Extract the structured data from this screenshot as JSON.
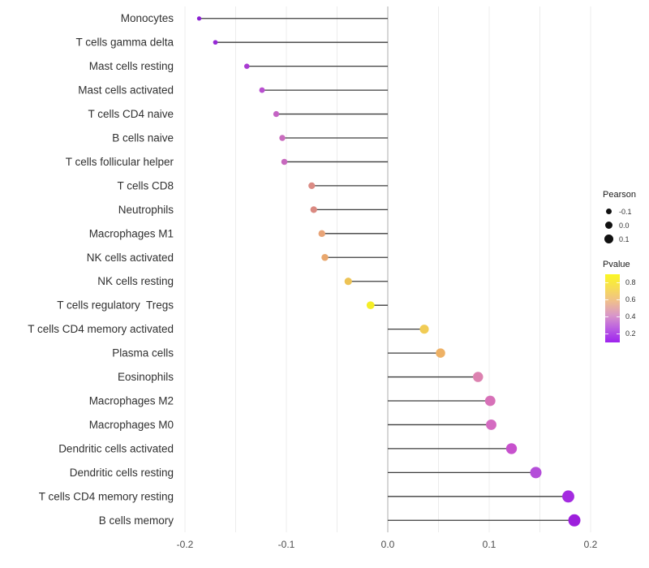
{
  "figure": {
    "background": "#ffffff"
  },
  "chart_data": {
    "type": "scatter",
    "subtype": "horizontal-lollipop",
    "title": "",
    "xlabel": "",
    "ylabel": "",
    "xlim": [
      -0.205,
      0.205
    ],
    "x_tick_values": [
      -0.2,
      -0.1,
      0.0,
      0.1,
      0.2
    ],
    "x_tick_labels": [
      "-0.2",
      "-0.1",
      "0.0",
      "0.1",
      "0.2"
    ],
    "minor_grid_values": [
      -0.15,
      -0.05,
      0.05,
      0.15
    ],
    "grid": "vertical-only",
    "zero_line_value": 0,
    "points": [
      {
        "label": "Monocytes",
        "pearson": -0.186,
        "color": "#8A1FD2"
      },
      {
        "label": "T cells gamma delta",
        "pearson": -0.17,
        "color": "#9628D6"
      },
      {
        "label": "Mast cells resting",
        "pearson": -0.139,
        "color": "#A93BD2"
      },
      {
        "label": "Mast cells activated",
        "pearson": -0.124,
        "color": "#B94FD0"
      },
      {
        "label": "T cells CD4 naive",
        "pearson": -0.11,
        "color": "#C463C4"
      },
      {
        "label": "B cells naive",
        "pearson": -0.104,
        "color": "#C96CBE"
      },
      {
        "label": "T cells follicular helper",
        "pearson": -0.102,
        "color": "#C768BE"
      },
      {
        "label": "T cells CD8",
        "pearson": -0.075,
        "color": "#DB8B84"
      },
      {
        "label": "Neutrophils",
        "pearson": -0.073,
        "color": "#DA8981"
      },
      {
        "label": "Macrophages M1",
        "pearson": -0.065,
        "color": "#E8A478"
      },
      {
        "label": "NK cells activated",
        "pearson": -0.062,
        "color": "#E9A76D"
      },
      {
        "label": "NK cells resting",
        "pearson": -0.039,
        "color": "#EDC355"
      },
      {
        "label": "T cells regulatory  Tregs",
        "pearson": -0.017,
        "color": "#F5EE27"
      },
      {
        "label": "T cells CD4 memory activated",
        "pearson": 0.036,
        "color": "#F1CC55"
      },
      {
        "label": "Plasma cells",
        "pearson": 0.052,
        "color": "#EEB165"
      },
      {
        "label": "Eosinophils",
        "pearson": 0.089,
        "color": "#DC82B0"
      },
      {
        "label": "Macrophages M2",
        "pearson": 0.101,
        "color": "#D771B8"
      },
      {
        "label": "Macrophages M0",
        "pearson": 0.102,
        "color": "#D46BC1"
      },
      {
        "label": "Dendritic cells activated",
        "pearson": 0.122,
        "color": "#C751CD"
      },
      {
        "label": "Dendritic cells resting",
        "pearson": 0.146,
        "color": "#B44ED9"
      },
      {
        "label": "T cells CD4 memory resting",
        "pearson": 0.178,
        "color": "#A42BE0"
      },
      {
        "label": "B cells memory",
        "pearson": 0.184,
        "color": "#9D1FDC"
      }
    ],
    "legend": {
      "size": {
        "title": "Pearson",
        "entries": [
          "-0.1",
          "0.0",
          "0.1"
        ]
      },
      "color": {
        "title": "Pvalue",
        "tick_labels": [
          "0.8",
          "0.6",
          "0.4",
          "0.2"
        ],
        "gradient_stops_top_to_bottom": [
          "#FBF724",
          "#F7DD55",
          "#EFBE8E",
          "#D997C8",
          "#BA5DE2",
          "#9E23EE"
        ]
      }
    }
  },
  "style_colors": {
    "grid": "#ececec",
    "zero_line": "#c9c9c9",
    "stem": "#3c3c3c",
    "axis_text": "#4d4d4d",
    "category_text": "#303030"
  }
}
